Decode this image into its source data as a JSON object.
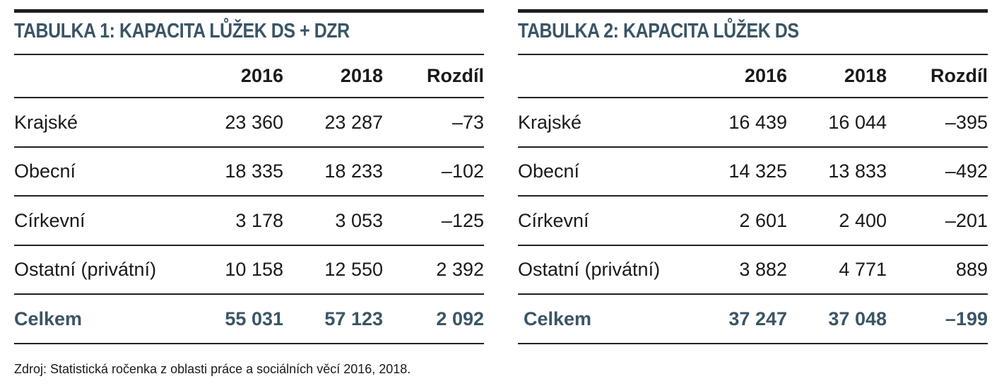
{
  "tables": [
    {
      "title": "TABULKA 1: KAPACITA LŮŽEK DS + DZR",
      "headers": [
        "",
        "2016",
        "2018",
        "Rozdíl"
      ],
      "rows": [
        {
          "label": "Krajské",
          "v2016": "23 360",
          "v2018": "23 287",
          "diff": "–73"
        },
        {
          "label": "Obecní",
          "v2016": "18 335",
          "v2018": "18 233",
          "diff": "–102"
        },
        {
          "label": "Církevní",
          "v2016": "3 178",
          "v2018": "3 053",
          "diff": "–125"
        },
        {
          "label": "Ostatní (privátní)",
          "v2016": "10 158",
          "v2018": "12 550",
          "diff": "2 392"
        }
      ],
      "total": {
        "label": "Celkem",
        "v2016": "55 031",
        "v2018": "57 123",
        "diff": "2 092"
      }
    },
    {
      "title": "TABULKA 2: KAPACITA LŮŽEK DS",
      "headers": [
        "",
        "2016",
        "2018",
        "Rozdíl"
      ],
      "rows": [
        {
          "label": "Krajské",
          "v2016": "16 439",
          "v2018": "16 044",
          "diff": "–395"
        },
        {
          "label": "Obecní",
          "v2016": "14 325",
          "v2018": "13 833",
          "diff": "–492"
        },
        {
          "label": "Církevní",
          "v2016": "2 601",
          "v2018": "2 400",
          "diff": "–201"
        },
        {
          "label": "Ostatní (privátní)",
          "v2016": "3 882",
          "v2018": "4 771",
          "diff": "889"
        }
      ],
      "total": {
        "label": "Celkem",
        "v2016": "37 247",
        "v2018": "37 048",
        "diff": "–199"
      }
    }
  ],
  "footnote": "Zdroj: Statistická ročenka z oblasti práce a sociálních věcí 2016, 2018.",
  "colors": {
    "title": "#3a5566",
    "total": "#3a5566",
    "rule": "#1e1e1e"
  }
}
